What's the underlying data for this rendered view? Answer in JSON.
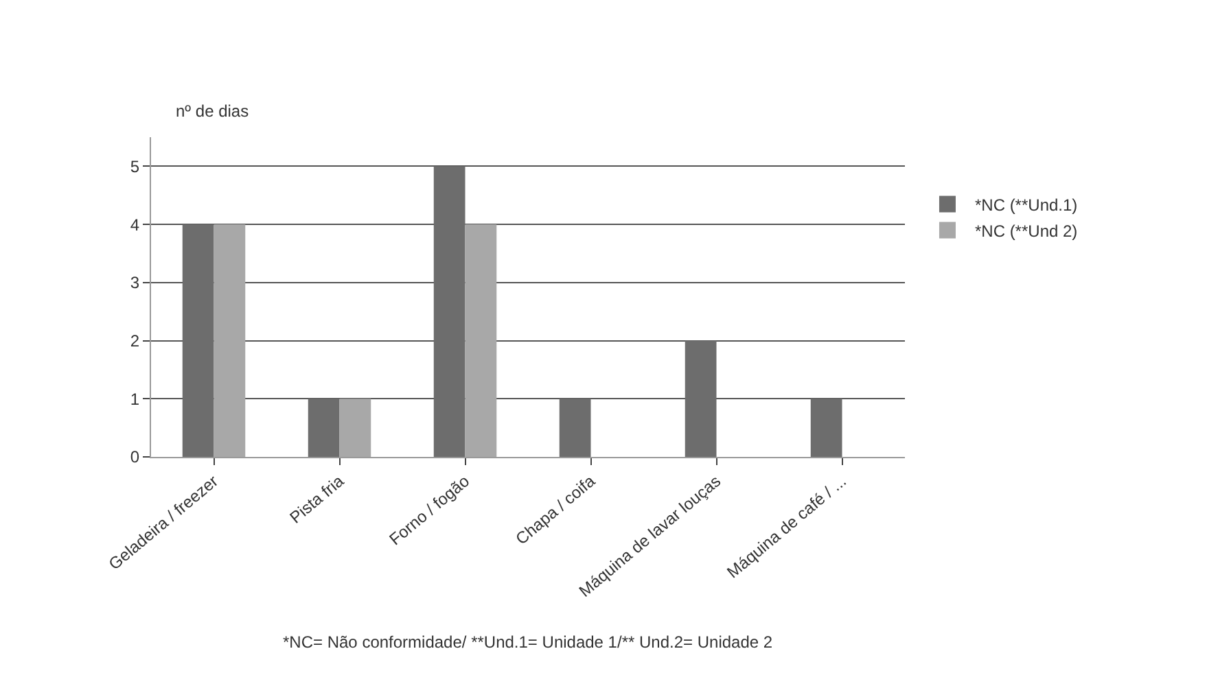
{
  "chart_data": {
    "type": "bar",
    "ylabel": "nº de dias",
    "categories": [
      "Geladeira / freezer",
      "Pista fria",
      "Forno / fogão",
      "Chapa / coifa",
      "Máquina de lavar louças",
      "Máquina de café / ..."
    ],
    "series": [
      {
        "name": "*NC (**Und.1)",
        "color": "#6d6d6d",
        "values": [
          4,
          1,
          5,
          1,
          2,
          1
        ]
      },
      {
        "name": "*NC (**Und 2)",
        "color": "#a8a8a8",
        "values": [
          4,
          1,
          4,
          0,
          0,
          0
        ]
      }
    ],
    "ylim": [
      0,
      5.5
    ],
    "yticks": [
      0,
      1,
      2,
      3,
      4,
      5
    ],
    "grid": "y",
    "legend": "right",
    "annotations": [
      "*NC= Não conformidade/ **Und.1= Unidade 1/** Und.2= Unidade 2"
    ]
  }
}
